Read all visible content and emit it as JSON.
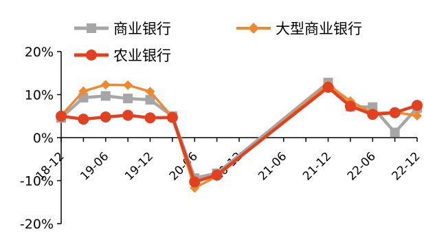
{
  "chart_data": {
    "type": "line",
    "title": "",
    "xlabel": "",
    "ylabel": "",
    "ylim": [
      -20,
      20
    ],
    "y_ticks": [
      -20,
      -10,
      0,
      10,
      20
    ],
    "y_tick_labels": [
      "-20%",
      "-10%",
      "0%",
      "10%",
      "20%"
    ],
    "grid": false,
    "legend_placement": "top-left",
    "x": [
      "18-12",
      "19-03",
      "19-06",
      "19-09",
      "19-12",
      "20-03",
      "20-06",
      "20-09",
      "20-12",
      "21-03",
      "21-06",
      "21-09",
      "21-12",
      "22-03",
      "22-06",
      "22-09",
      "22-12"
    ],
    "x_tick_labels": [
      "18-12",
      "19-06",
      "19-12",
      "20-06",
      "20-12",
      "21-06",
      "21-12",
      "22-06",
      "22-12"
    ],
    "series": [
      {
        "name": "商业银行",
        "color": "#a6a6a6",
        "marker": "square",
        "values": [
          4.6,
          9.3,
          9.7,
          9.1,
          8.8,
          5.0,
          -9.4,
          -8.3,
          null,
          null,
          null,
          null,
          12.8,
          7.2,
          7.1,
          1.2,
          6.9
        ]
      },
      {
        "name": "大型商业银行",
        "color": "#f0882e",
        "marker": "diamond",
        "values": [
          5.1,
          10.8,
          12.3,
          12.2,
          10.7,
          4.8,
          -11.7,
          -9.0,
          null,
          null,
          null,
          null,
          12.3,
          8.5,
          5.7,
          5.9,
          5.1
        ]
      },
      {
        "name": "农业银行",
        "color": "#e2401e",
        "marker": "circle",
        "values": [
          5.0,
          4.3,
          4.8,
          5.2,
          4.6,
          4.7,
          -10.3,
          -8.7,
          null,
          null,
          null,
          null,
          11.7,
          7.3,
          5.4,
          5.8,
          7.5
        ]
      }
    ]
  }
}
